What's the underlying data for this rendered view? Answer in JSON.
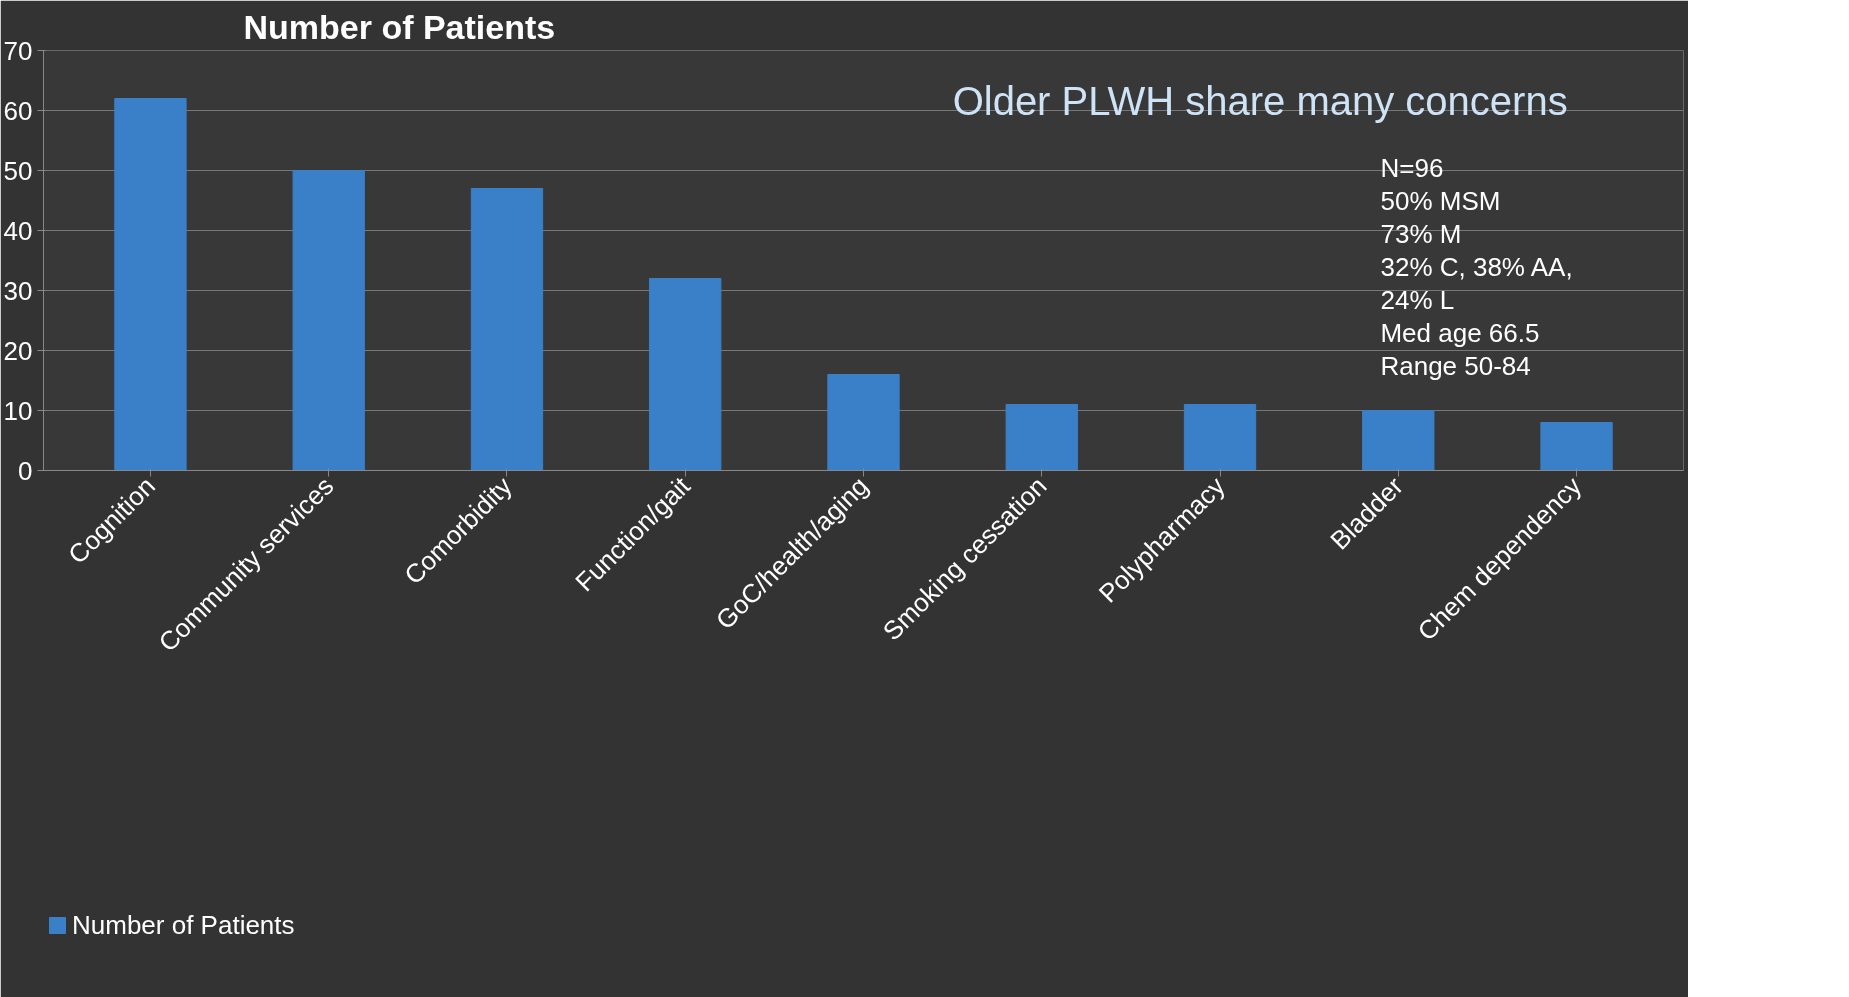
{
  "chart_data": {
    "type": "bar",
    "title": "Number of Patients",
    "categories": [
      "Cognition",
      "Community services",
      "Comorbidity",
      "Function/gait",
      "GoC/health/aging",
      "Smoking cessation",
      "Polypharmacy",
      "Bladder",
      "Chem dependency"
    ],
    "series": [
      {
        "name": "Number of Patients",
        "color": "#3a80c8",
        "values": [
          62,
          50,
          47,
          32,
          16,
          11,
          11,
          10,
          8
        ]
      }
    ],
    "ylim": [
      0,
      70
    ],
    "yticks": [
      0,
      10,
      20,
      30,
      40,
      50,
      60,
      70
    ],
    "grid": "y",
    "legend": "bottom",
    "annotations": [
      "Older PLWH share many concerns",
      "N=96",
      "50% MSM",
      "73% M",
      "32% C, 38% AA,",
      "24% L",
      "Med age 66.5",
      "Range 50-84"
    ]
  }
}
